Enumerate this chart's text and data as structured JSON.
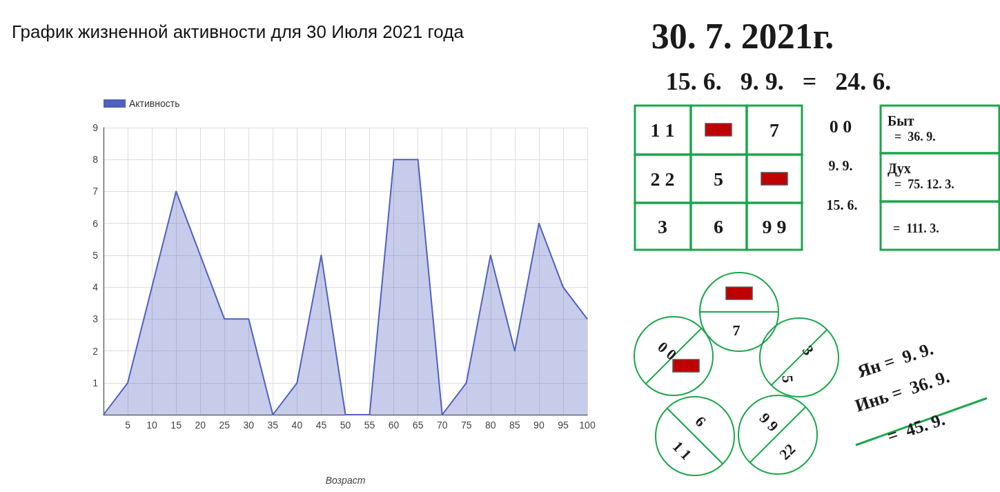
{
  "chart_data": [
    {
      "type": "area",
      "title": "График жизненной активности для 30 Июля 2021 года",
      "xlabel": "Возраст",
      "x": [
        0,
        5,
        10,
        15,
        20,
        25,
        30,
        35,
        40,
        45,
        50,
        55,
        60,
        65,
        70,
        75,
        80,
        85,
        90,
        95,
        100
      ],
      "series": [
        {
          "name": "Активность",
          "color": "#5060c0",
          "values": [
            0,
            1,
            4,
            7,
            5,
            3,
            3,
            0,
            1,
            5,
            0,
            0,
            8,
            8,
            0,
            1,
            5,
            2,
            6,
            4,
            3
          ]
        }
      ],
      "xlim": [
        0,
        100
      ],
      "xticks": [
        {
          "value": 0,
          "label": null
        },
        5,
        10,
        15,
        20,
        25,
        30,
        35,
        40,
        45,
        50,
        55,
        60,
        65,
        70,
        75,
        80,
        85,
        90,
        95,
        100
      ],
      "ylim": [
        0,
        9
      ],
      "yticks": [
        {
          "value": 0,
          "label": null
        },
        1,
        2,
        3,
        4,
        5,
        6,
        7,
        8,
        9
      ],
      "grid": true,
      "legend": "top left",
      "marker": "none"
    },
    {
      "type": "other",
      "title": "30. 7. 2021г.",
      "subtitle": "15. 6.   9. 9.   =   24. 6.",
      "annotations": [
        "1 1",
        "7",
        "2 2",
        "5",
        "3",
        "6",
        "9 9",
        "0 0",
        "9. 9.",
        "15. 6.",
        "Быт",
        "=  36. 9.",
        "Дух",
        "=  75. 12. 3.",
        "=  111. 3.",
        "7",
        "3",
        "5",
        "9 9",
        "22",
        "6",
        "1 1",
        "0 0",
        "Ян =  9. 9.",
        "Инь =  36. 9.",
        "=  45. 9."
      ]
    }
  ]
}
